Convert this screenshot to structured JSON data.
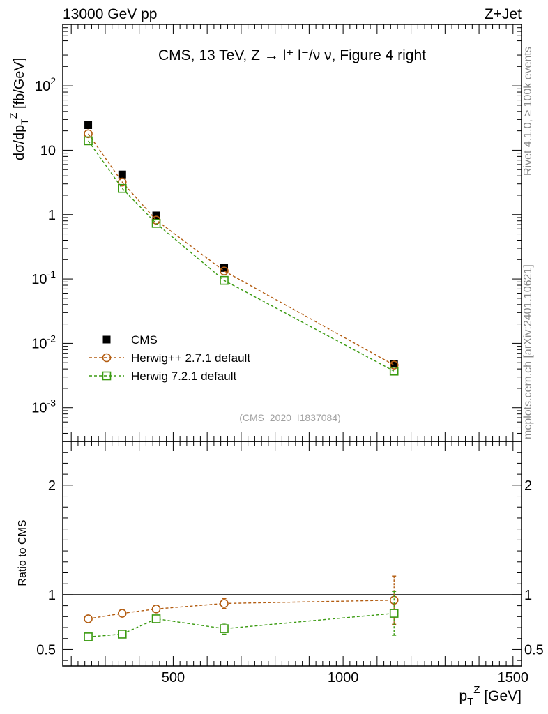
{
  "header": {
    "left_label": "13000 GeV pp",
    "right_label": "Z+Jet"
  },
  "side_labels": {
    "rivet": "Rivet 4.1.0, ≥ 100k events",
    "mcplots": "mcplots.cern.ch [arXiv:2401.10621]"
  },
  "chart_data": [
    {
      "type": "scatter",
      "role": "main",
      "title": "CMS, 13 TeV, Z →  l⁺ l⁻/ν ν, Figure 4 right",
      "analysis_label": "(CMS_2020_I1837084)",
      "ylabel": "dσ/dp_T^Z [fb/GeV]",
      "xlabel": "p_T^Z [GeV]",
      "yscale": "log",
      "xlim": [
        175,
        1525
      ],
      "ylim": [
        0.0003,
        900
      ],
      "y_ticks": [
        {
          "value": 100,
          "label": "10^2"
        },
        {
          "value": 10,
          "label": "10"
        },
        {
          "value": 1,
          "label": "1"
        },
        {
          "value": 0.1,
          "label": "10^-1"
        },
        {
          "value": 0.01,
          "label": "10^-2"
        },
        {
          "value": 0.001,
          "label": "10^-3"
        }
      ],
      "x": [
        250,
        350,
        450,
        650,
        1150
      ],
      "series": [
        {
          "name": "CMS",
          "marker": "filled-square",
          "color": "#000000",
          "values": [
            24.5,
            4.2,
            0.97,
            0.148,
            0.0048
          ]
        },
        {
          "name": "Herwig++ 2.7.1 default",
          "marker": "open-circle",
          "color": "#b35c10",
          "values": [
            18.0,
            3.2,
            0.82,
            0.133,
            0.0046
          ]
        },
        {
          "name": "Herwig 7.2.1 default",
          "marker": "open-square",
          "color": "#3a9a10",
          "values": [
            14.0,
            2.55,
            0.73,
            0.095,
            0.0037
          ]
        }
      ],
      "legend_position": "bottom-left"
    },
    {
      "type": "scatter",
      "role": "ratio",
      "ylabel": "Ratio to CMS",
      "xlabel": "p_T^Z [GeV]",
      "xlim": [
        175,
        1525
      ],
      "ylim": [
        0.35,
        2.4
      ],
      "y_ticks": [
        {
          "value": 0.5,
          "label": "0.5"
        },
        {
          "value": 1,
          "label": "1"
        },
        {
          "value": 2,
          "label": "2"
        }
      ],
      "x_ticks": [
        {
          "value": 500,
          "label": "500"
        },
        {
          "value": 1000,
          "label": "1000"
        },
        {
          "value": 1500,
          "label": "1500"
        }
      ],
      "reference_line": 1,
      "x": [
        250,
        350,
        450,
        650,
        1150
      ],
      "series": [
        {
          "name": "Herwig++ 2.7.1 default",
          "color": "#b35c10",
          "values": [
            0.78,
            0.83,
            0.87,
            0.92,
            0.95
          ],
          "errors": [
            0.012,
            0.015,
            0.03,
            0.045,
            0.22
          ]
        },
        {
          "name": "Herwig 7.2.1 default",
          "color": "#3a9a10",
          "values": [
            0.615,
            0.64,
            0.78,
            0.69,
            0.83
          ],
          "errors": [
            0.012,
            0.015,
            0.03,
            0.05,
            0.2
          ]
        }
      ]
    }
  ]
}
